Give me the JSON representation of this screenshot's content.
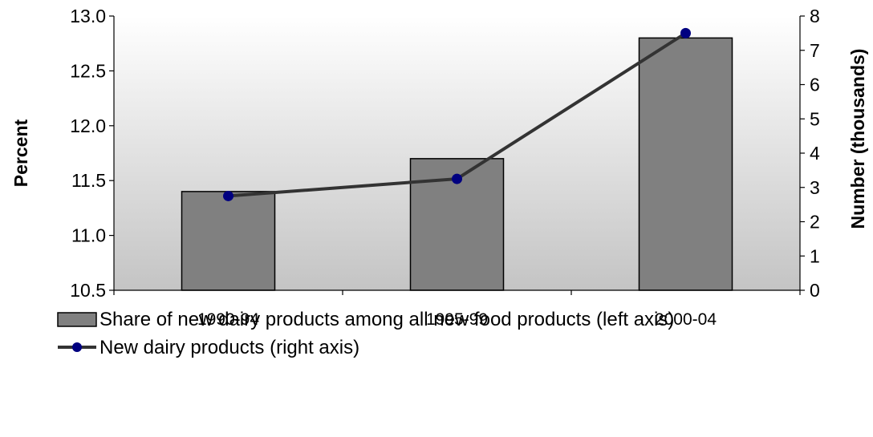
{
  "chart_data": {
    "type": "bar",
    "categories": [
      "1990-94",
      "1995-99",
      "2000-04"
    ],
    "series": [
      {
        "name": "Share of new dairy products among all new food products (left axis)",
        "type": "bar",
        "axis": "left",
        "values": [
          11.4,
          11.7,
          12.8
        ],
        "color": "#808080"
      },
      {
        "name": "New dairy products (right axis)",
        "type": "line",
        "axis": "right",
        "values": [
          2.75,
          3.25,
          7.5
        ],
        "color": "#333333",
        "marker_color": "#000080"
      }
    ],
    "ylabel": "Percent",
    "y2label": "Number (thousands)",
    "ylim": [
      10.5,
      13.0
    ],
    "y2lim": [
      0,
      8
    ],
    "yticks": [
      "10.5",
      "11.0",
      "11.5",
      "12.0",
      "12.5",
      "13.0"
    ],
    "y2ticks": [
      "0",
      "1",
      "2",
      "3",
      "4",
      "5",
      "6",
      "7",
      "8"
    ],
    "legend_position": "bottom",
    "grid": false,
    "plot_background": "gradient light gray"
  }
}
